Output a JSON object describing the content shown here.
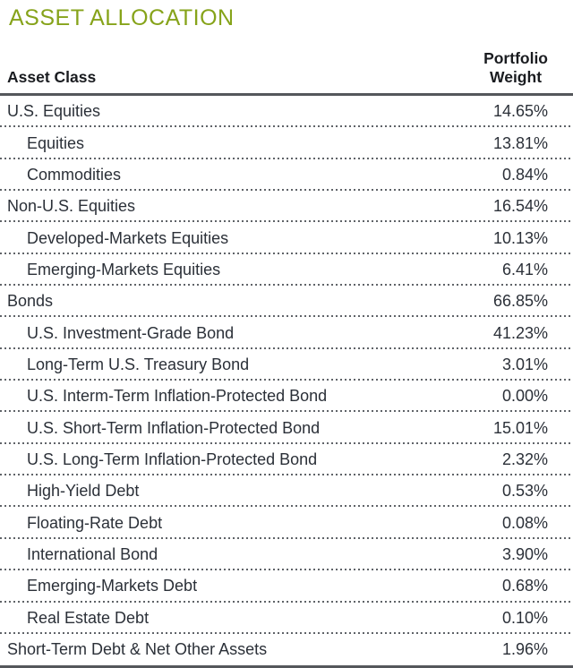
{
  "page": {
    "title": "ASSET ALLOCATION"
  },
  "colors": {
    "accent_green": "#86A31A",
    "text_dark": "#2B3038",
    "header_black": "#1A1C20",
    "rule_gray": "#54575B",
    "dot_gray": "#5F6368",
    "bg": "#FFFFFF"
  },
  "table": {
    "columns": {
      "asset_class": "Asset Class",
      "weight_line1": "Portfolio",
      "weight_line2": "Weight"
    },
    "rows": [
      {
        "label": "U.S. Equities",
        "weight": "14.65%",
        "indent": false
      },
      {
        "label": "Equities",
        "weight": "13.81%",
        "indent": true
      },
      {
        "label": "Commodities",
        "weight": "0.84%",
        "indent": true
      },
      {
        "label": "Non-U.S. Equities",
        "weight": "16.54%",
        "indent": false
      },
      {
        "label": "Developed-Markets Equities",
        "weight": "10.13%",
        "indent": true
      },
      {
        "label": "Emerging-Markets Equities",
        "weight": "6.41%",
        "indent": true
      },
      {
        "label": "Bonds",
        "weight": "66.85%",
        "indent": false
      },
      {
        "label": "U.S. Investment-Grade Bond",
        "weight": "41.23%",
        "indent": true
      },
      {
        "label": "Long-Term U.S. Treasury Bond",
        "weight": "3.01%",
        "indent": true
      },
      {
        "label": "U.S. Interm-Term Inflation-Protected Bond",
        "weight": "0.00%",
        "indent": true
      },
      {
        "label": "U.S. Short-Term Inflation-Protected Bond",
        "weight": "15.01%",
        "indent": true
      },
      {
        "label": "U.S. Long-Term Inflation-Protected Bond",
        "weight": "2.32%",
        "indent": true
      },
      {
        "label": "High-Yield Debt",
        "weight": "0.53%",
        "indent": true
      },
      {
        "label": "Floating-Rate Debt",
        "weight": "0.08%",
        "indent": true
      },
      {
        "label": "International Bond",
        "weight": "3.90%",
        "indent": true
      },
      {
        "label": "Emerging-Markets Debt",
        "weight": "0.68%",
        "indent": true
      },
      {
        "label": "Real Estate Debt",
        "weight": "0.10%",
        "indent": true
      },
      {
        "label": "Short-Term Debt & Net Other Assets",
        "weight": "1.96%",
        "indent": false
      }
    ]
  }
}
